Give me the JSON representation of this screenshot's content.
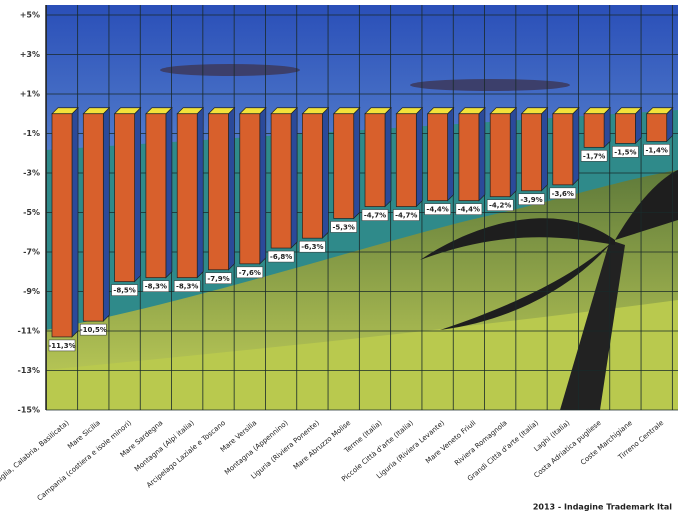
{
  "chart_data": {
    "type": "bar",
    "categories": [
      "Costa Ionica (Puglia, Calabria, Basilicata)",
      "Mare Sicilia",
      "Campania (costiera e isole minori)",
      "Mare Sardegna",
      "Montagna (Alpi italia)",
      "Arcipelago Laziale e Toscano",
      "Mare Versilia",
      "Montagna (Appennino)",
      "Liguria (Riviera Ponente)",
      "Mare Abruzzo Molise",
      "Terme (Italia)",
      "Piccole Città d'arte (Italia)",
      "Liguria (Riviera Levante)",
      "Mare Veneto Friuli",
      "Riviera Romagnola",
      "Grandi Città d'arte (Italia)",
      "Laghi (Italia)",
      "Costa Adriatica pugliese",
      "Coste Marchigiane",
      "Tirreno Centrale"
    ],
    "values": [
      -11.3,
      -10.5,
      -8.5,
      -8.3,
      -8.3,
      -7.9,
      -7.6,
      -6.8,
      -6.3,
      -5.3,
      -4.7,
      -4.7,
      -4.4,
      -4.4,
      -4.2,
      -3.9,
      -3.6,
      -1.7,
      -1.5,
      -1.4
    ],
    "value_labels": [
      "-11,3%",
      "-10,5%",
      "-8,5%",
      "-8,3%",
      "-8,3%",
      "-7,9%",
      "-7,6%",
      "-6,8%",
      "-6,3%",
      "-5,3%",
      "-4,7%",
      "-4,7%",
      "-4,4%",
      "-4,4%",
      "-4,2%",
      "-3,9%",
      "-3,6%",
      "-1,7%",
      "-1,5%",
      "-1,4%"
    ],
    "color": "#d8602c",
    "ylim": [
      -15,
      5
    ],
    "yticks": [
      {
        "value": 5,
        "label": "+5%"
      },
      {
        "value": 3,
        "label": "+3%"
      },
      {
        "value": 1,
        "label": "+1%"
      },
      {
        "value": -1,
        "label": "-1%"
      },
      {
        "value": -3,
        "label": "-3%"
      },
      {
        "value": -5,
        "label": "-5%"
      },
      {
        "value": -7,
        "label": "-7%"
      },
      {
        "value": -9,
        "label": "-9%"
      },
      {
        "value": -11,
        "label": "-11%"
      },
      {
        "value": -13,
        "label": "-13%"
      },
      {
        "value": -15,
        "label": "-15%"
      }
    ],
    "grid": true,
    "source": "2013 - Indagine Trademark Ital"
  }
}
